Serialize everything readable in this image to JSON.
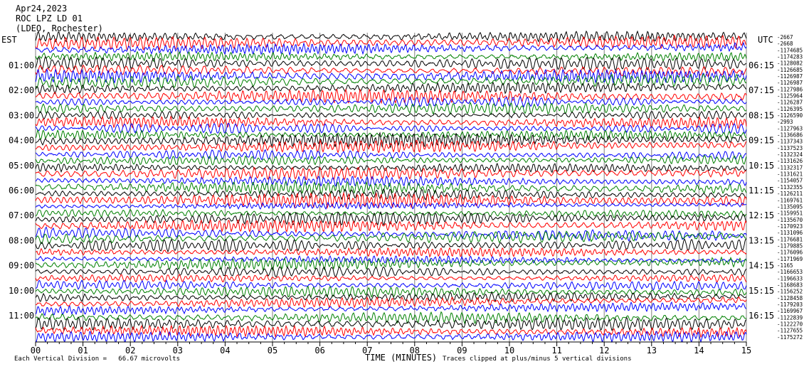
{
  "header": {
    "date": "Apr24,2023",
    "station": "ROC LPZ LD 01",
    "network": "(LDEO, Rochester)"
  },
  "left_tz": "EST",
  "right_tz": "UTC",
  "footer": {
    "xlabel": "TIME (MINUTES)",
    "scale_note": "Each Vertical Division =   66.67 microvolts",
    "clip_note": "Traces clipped at plus/minus 5 vertical divisions"
  },
  "colors": {
    "trace_cycle": [
      "#000000",
      "#ff0000",
      "#0000ff",
      "#008000"
    ],
    "grid": "#808080",
    "axis": "#000000",
    "background": "#ffffff"
  },
  "chart_data": {
    "type": "line",
    "title": "ROC LPZ LD 01",
    "xlabel": "TIME (MINUTES)",
    "x_ticks": [
      "00",
      "01",
      "02",
      "03",
      "04",
      "05",
      "06",
      "07",
      "08",
      "09",
      "10",
      "11",
      "12",
      "13",
      "14",
      "15"
    ],
    "xlim": [
      0,
      15
    ],
    "grid": true,
    "left_hour_labels": [
      "01:00",
      "02:00",
      "03:00",
      "04:00",
      "05:00",
      "06:00",
      "07:00",
      "08:00",
      "09:00",
      "10:00",
      "11:00"
    ],
    "right_hour_labels": [
      "06:15",
      "07:15",
      "08:15",
      "09:15",
      "10:15",
      "11:15",
      "12:15",
      "13:15",
      "14:15",
      "15:15",
      "16:15"
    ],
    "trace_offsets": [
      "-2667",
      "-2668",
      "-1174685",
      "-1174283",
      "-1128082",
      "-1126685",
      "-1126987",
      "-1126987",
      "-1127986",
      "-1125964",
      "-1126287",
      "-1126395",
      "-1126590",
      "-2993",
      "-1127963",
      "-1136686",
      "-1137343",
      "-1137523",
      "-1132324",
      "-1131626",
      "-1132317",
      "-1131621",
      "-1154057",
      "-1132355",
      "-1126211",
      "-1169761",
      "-1135095",
      "-1159951",
      "-1135670",
      "-1170923",
      "-1131096",
      "-1176681",
      "-1179885",
      "-1176096",
      "-1171969",
      "-1165",
      "-1166653",
      "-1196633",
      "-1168683",
      "-1156252",
      "-1128458",
      "-1179203",
      "-1169967",
      "-1122839",
      "-1122270",
      "-1127655",
      "-1175272"
    ]
  }
}
